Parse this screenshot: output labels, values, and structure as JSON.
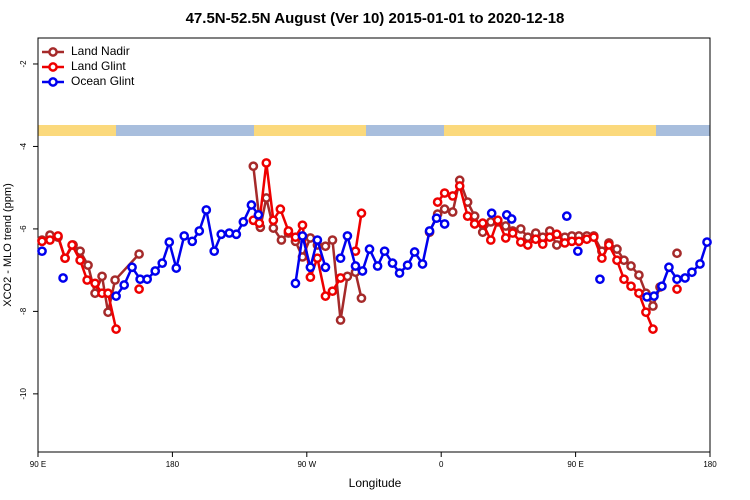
{
  "chart_data": {
    "type": "line",
    "title": "47.5N-52.5N August (Ver 10)   2015-01-01 to 2020-12-18",
    "x_label": "Longitude",
    "y_label": "XCO2 - MLO trend (ppm)",
    "xlim": [
      90,
      540
    ],
    "ylim": [
      -11.41,
      -1.37
    ],
    "xticks": [
      {
        "value": 90,
        "label": "90 E"
      },
      180,
      {
        "value": 270,
        "label": "90 W"
      },
      {
        "value": 360,
        "label": "0"
      },
      {
        "value": 450,
        "label": "90 E"
      },
      {
        "value": 540,
        "label": "180"
      }
    ],
    "yticks": [
      -2,
      -4,
      -6,
      -8,
      -10
    ],
    "legend": "top-left",
    "series": [
      {
        "name": "Land Nadir",
        "color": "#a52a2a",
        "x": [
          92.7,
          98.0,
          103.4,
          108.1,
          113.5,
          118.2,
          123.5,
          128.2,
          132.9,
          136.9,
          141.6,
          157.7,
          null,
          234.2,
          238.9,
          242.9,
          247.6,
          253.0,
          257.7,
          262.4,
          267.1,
          272.4,
          277.1,
          282.5,
          287.2,
          292.6,
          297.2,
          302.6,
          306.6,
          null,
          352.2,
          357.6,
          362.3,
          367.7,
          372.4,
          377.7,
          382.4,
          387.8,
          393.2,
          397.9,
          403.2,
          407.9,
          413.3,
          418.0,
          423.3,
          428.0,
          432.7,
          437.4,
          442.8,
          447.5,
          452.2,
          457.5,
          462.2,
          467.6,
          472.3,
          477.7,
          482.4,
          487.1,
          492.4,
          497.1,
          501.8,
          506.5,
          null,
          517.9
        ],
        "values": [
          -6.27,
          -6.15,
          -6.2,
          -6.71,
          -6.39,
          -6.54,
          -6.88,
          -7.56,
          -7.15,
          -8.02,
          -7.24,
          -6.61,
          null,
          -4.48,
          -5.96,
          -5.25,
          -5.98,
          -6.27,
          -6.1,
          -6.3,
          -6.68,
          -6.22,
          -6.39,
          -6.42,
          -6.27,
          -8.21,
          -7.15,
          -7.05,
          -7.68,
          null,
          -6.08,
          -5.64,
          -5.52,
          -5.59,
          -4.82,
          -5.35,
          -5.69,
          -6.08,
          -5.83,
          -5.83,
          -5.93,
          -6.05,
          -6.0,
          -6.2,
          -6.1,
          -6.2,
          -6.05,
          -6.39,
          -6.2,
          -6.17,
          -6.17,
          -6.17,
          -6.17,
          -6.54,
          -6.34,
          -6.49,
          -6.76,
          -6.9,
          -7.12,
          -7.56,
          -7.87,
          -7.41,
          null,
          -6.59
        ]
      },
      {
        "name": "Land Glint",
        "color": "#ee0000",
        "x": [
          92.7,
          98.0,
          103.4,
          108.1,
          112.8,
          118.2,
          122.9,
          128.2,
          132.9,
          136.9,
          142.3,
          null,
          157.7,
          null,
          234.2,
          238.2,
          242.9,
          247.6,
          252.3,
          257.7,
          262.4,
          267.1,
          272.4,
          277.1,
          282.5,
          287.2,
          292.6,
          null,
          302.6,
          306.6,
          null,
          357.6,
          362.3,
          367.7,
          372.4,
          377.7,
          382.4,
          387.8,
          393.2,
          397.9,
          403.2,
          407.9,
          413.3,
          418.0,
          423.3,
          428.0,
          432.7,
          437.4,
          442.8,
          447.5,
          452.2,
          457.5,
          462.2,
          467.6,
          472.3,
          477.7,
          482.4,
          487.1,
          492.4,
          497.1,
          501.8,
          null,
          517.9
        ],
        "values": [
          -6.3,
          -6.27,
          -6.17,
          -6.71,
          -6.39,
          -6.76,
          -7.24,
          -7.32,
          -7.56,
          -7.56,
          -8.43,
          null,
          -7.46,
          null,
          -5.79,
          -5.86,
          -4.4,
          -5.79,
          -5.52,
          -6.05,
          -6.2,
          -5.91,
          -7.17,
          -6.71,
          -7.63,
          -7.51,
          -7.19,
          null,
          -6.54,
          -5.62,
          null,
          -5.35,
          -5.13,
          -5.2,
          -4.96,
          -5.69,
          -5.88,
          -5.86,
          -6.27,
          -5.79,
          -6.22,
          -6.1,
          -6.32,
          -6.39,
          -6.25,
          -6.37,
          -6.2,
          -6.13,
          -6.34,
          -6.3,
          -6.3,
          -6.25,
          -6.2,
          -6.71,
          -6.39,
          -6.76,
          -7.22,
          -7.39,
          -7.56,
          -8.02,
          -8.43,
          null,
          -7.46
        ]
      },
      {
        "name": "Ocean Glint",
        "color": "#0000ee",
        "x": [
          92.7,
          null,
          106.8,
          null,
          142.3,
          147.7,
          153.0,
          158.4,
          163.1,
          168.5,
          173.2,
          177.9,
          182.6,
          187.9,
          193.3,
          198.0,
          202.7,
          208.0,
          212.7,
          218.1,
          222.8,
          227.5,
          232.9,
          237.6,
          null,
          262.4,
          267.1,
          272.4,
          277.1,
          282.5,
          null,
          292.6,
          297.2,
          302.6,
          307.3,
          312.0,
          317.4,
          322.1,
          327.4,
          332.1,
          337.5,
          342.2,
          347.5,
          352.2,
          356.9,
          362.3,
          null,
          393.8,
          null,
          403.9,
          407.2,
          null,
          444.1,
          null,
          451.5,
          null,
          466.3,
          null,
          497.8,
          502.5,
          507.8,
          512.5,
          517.9,
          523.3,
          527.9,
          533.3,
          538.0
        ],
        "values": [
          -6.54,
          null,
          -7.19,
          null,
          -7.63,
          -7.36,
          -6.93,
          -7.22,
          -7.22,
          -7.02,
          -6.83,
          -6.32,
          -6.95,
          -6.17,
          -6.3,
          -6.05,
          -5.54,
          -6.54,
          -6.13,
          -6.1,
          -6.13,
          -5.83,
          -5.42,
          -5.66,
          null,
          -7.32,
          -6.17,
          -6.93,
          -6.27,
          -6.93,
          null,
          -6.71,
          -6.17,
          -6.9,
          -7.02,
          -6.49,
          -6.9,
          -6.54,
          -6.83,
          -7.07,
          -6.88,
          -6.56,
          -6.85,
          -6.05,
          -5.74,
          -5.88,
          null,
          -5.62,
          null,
          -5.66,
          -5.76,
          null,
          -5.69,
          null,
          -6.54,
          null,
          -7.22,
          null,
          -7.65,
          -7.63,
          -7.39,
          -6.93,
          -7.22,
          -7.19,
          -7.05,
          -6.85,
          -6.32
        ]
      }
    ]
  }
}
